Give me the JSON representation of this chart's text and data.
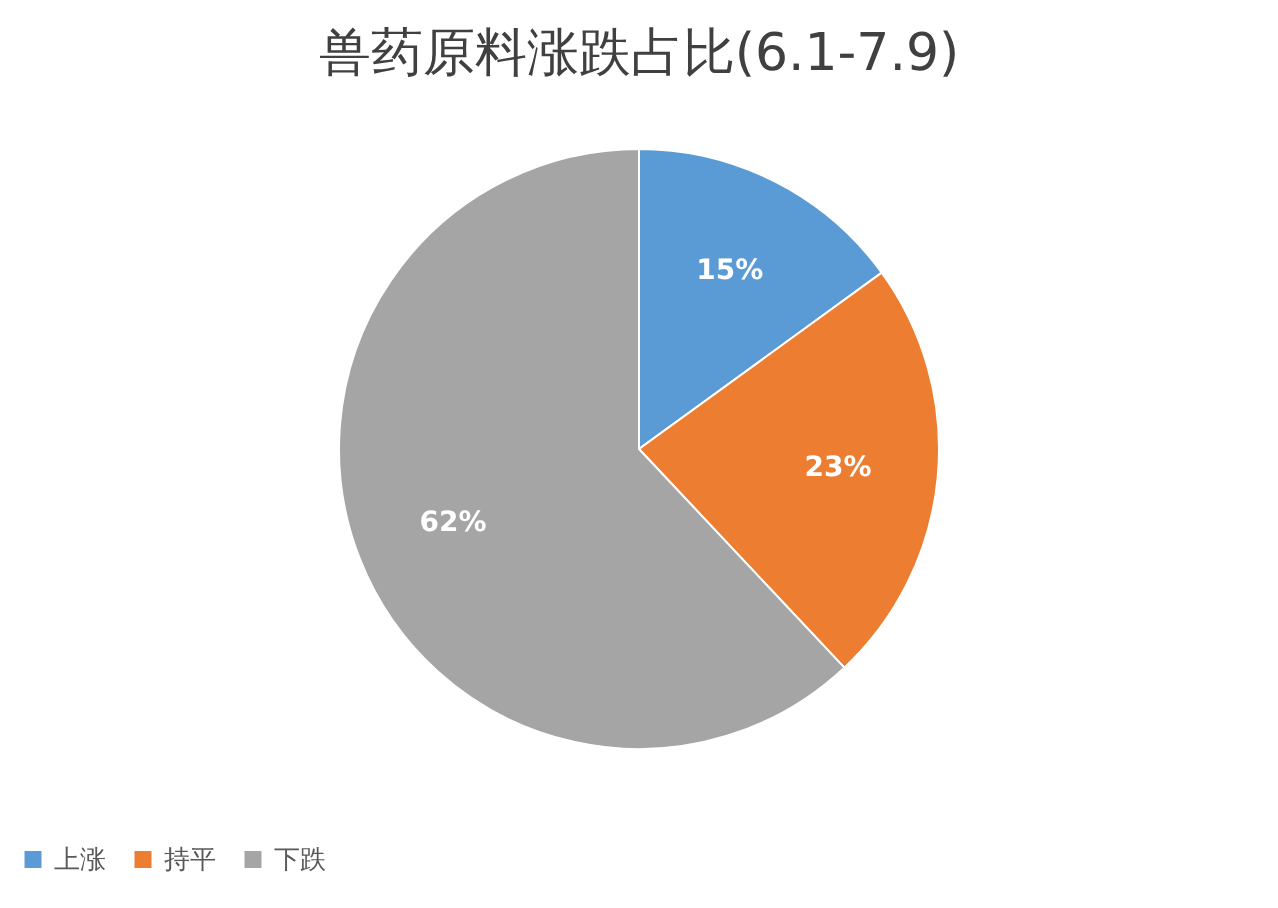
{
  "chart_data": {
    "type": "pie",
    "title": "兽药原料涨跌占比(6.1-7.9)",
    "categories": [
      "上涨",
      "持平",
      "下跌"
    ],
    "values": [
      15,
      23,
      62
    ],
    "colors": [
      "#5b9bd5",
      "#ed7d31",
      "#a5a5a5"
    ],
    "value_labels": [
      "15%",
      "23%",
      "62%"
    ],
    "legend": "bottom"
  }
}
